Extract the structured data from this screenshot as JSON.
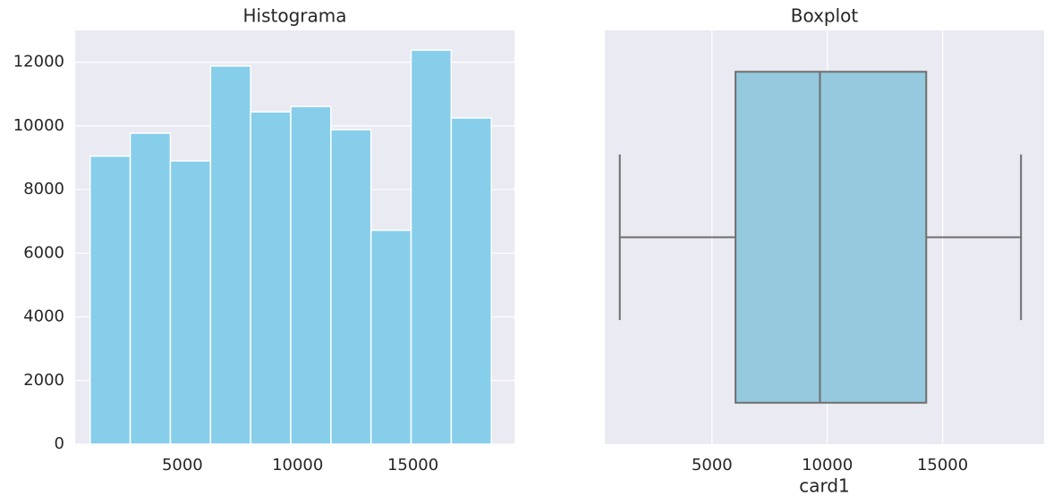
{
  "chart_data": [
    {
      "type": "bar",
      "title": "Histograma",
      "xlabel": "",
      "ylabel": "",
      "xlim": [
        350,
        19400
      ],
      "ylim": [
        0,
        13000
      ],
      "x_ticks": [
        5000,
        10000,
        15000
      ],
      "y_ticks": [
        0,
        2000,
        4000,
        6000,
        8000,
        10000,
        12000
      ],
      "x_tick_labels": [
        "5000",
        "10000",
        "15000"
      ],
      "y_tick_labels": [
        "0",
        "2000",
        "4000",
        "6000",
        "8000",
        "10000",
        "12000"
      ],
      "bins": [
        {
          "start": 1000,
          "end": 2740,
          "value": 9050
        },
        {
          "start": 2740,
          "end": 4480,
          "value": 9770
        },
        {
          "start": 4480,
          "end": 6220,
          "value": 8900
        },
        {
          "start": 6220,
          "end": 7960,
          "value": 11880
        },
        {
          "start": 7960,
          "end": 9700,
          "value": 10440
        },
        {
          "start": 9700,
          "end": 11440,
          "value": 10610
        },
        {
          "start": 11440,
          "end": 13180,
          "value": 9880
        },
        {
          "start": 13180,
          "end": 14920,
          "value": 6720
        },
        {
          "start": 14920,
          "end": 16660,
          "value": 12380
        },
        {
          "start": 16660,
          "end": 18400,
          "value": 10250
        }
      ],
      "grid": true,
      "colors": {
        "background": "#EAEAF2",
        "bar": "#87CEEB",
        "grid": "#FFFFFF"
      }
    },
    {
      "type": "boxplot",
      "title": "Boxplot",
      "xlabel": "card1",
      "ylabel": "",
      "xlim": [
        350,
        19400
      ],
      "x_ticks": [
        5000,
        10000,
        15000
      ],
      "x_tick_labels": [
        "5000",
        "10000",
        "15000"
      ],
      "stats": {
        "min": 1000,
        "q1": 6020,
        "median": 9680,
        "q3": 14290,
        "max": 18400
      },
      "grid": true,
      "colors": {
        "background": "#EAEAF2",
        "box": "#95C9DE",
        "line": "#6E6E6E",
        "grid": "#FFFFFF"
      }
    }
  ]
}
